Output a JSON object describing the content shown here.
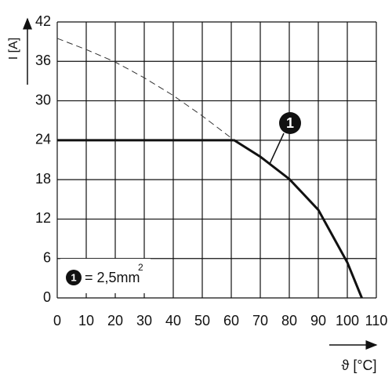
{
  "chart_data": {
    "type": "line",
    "x_label": "ϑ [°C]",
    "y_label": "I [A]",
    "xlim": [
      0,
      110
    ],
    "ylim": [
      0,
      42
    ],
    "xticks": [
      0,
      10,
      20,
      30,
      40,
      50,
      60,
      70,
      80,
      90,
      100,
      110
    ],
    "yticks": [
      0,
      6,
      12,
      18,
      24,
      30,
      36,
      42
    ],
    "grid": true,
    "series": [
      {
        "color": "#111111",
        "style": "solid",
        "x": [
          0,
          61,
          70,
          80,
          90,
          100,
          105
        ],
        "values": [
          24,
          24,
          21.5,
          18.1,
          13.4,
          5.4,
          0
        ]
      },
      {
        "color": "#333333",
        "style": "dashed",
        "x": [
          0,
          10,
          20,
          30,
          40,
          50,
          61
        ],
        "values": [
          39.5,
          37.8,
          35.9,
          33.5,
          30.8,
          27.7,
          24
        ]
      }
    ],
    "callout": "1",
    "legend_marker": "1",
    "legend_text": "= 2,5mm",
    "legend_sup": "2"
  }
}
